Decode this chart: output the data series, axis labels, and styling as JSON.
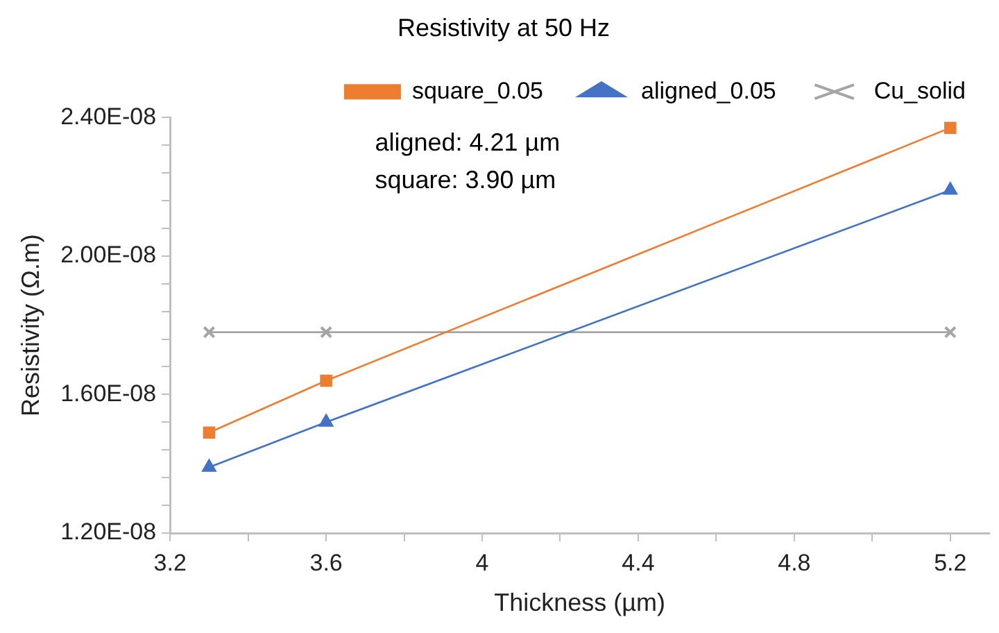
{
  "chart_data": {
    "type": "line",
    "title": "Resistivity at 50 Hz",
    "xlabel": "Thickness (µm)",
    "ylabel": "Resistivity (Ω.m)",
    "x": [
      3.3,
      3.6,
      5.2
    ],
    "series": [
      {
        "name": "square_0.05",
        "color": "#ed7d31",
        "marker": "square",
        "values": [
          1.49e-08,
          1.64e-08,
          2.37e-08
        ]
      },
      {
        "name": "aligned_0.05",
        "color": "#4472c4",
        "marker": "triangle",
        "values": [
          1.39e-08,
          1.52e-08,
          2.19e-08
        ]
      },
      {
        "name": "Cu_solid",
        "color": "#a5a5a5",
        "marker": "cross",
        "values": [
          1.78e-08,
          1.78e-08,
          1.78e-08
        ]
      }
    ],
    "xlim": [
      3.2,
      5.3
    ],
    "xticks": [
      3.2,
      {
        "value": 3.4,
        "label": null
      },
      3.6,
      {
        "value": 3.8,
        "label": null
      },
      4,
      {
        "value": 4.2,
        "label": null
      },
      4.4,
      {
        "value": 4.6,
        "label": null
      },
      4.8,
      {
        "value": 5.0,
        "label": null
      },
      5.2
    ],
    "ylim": [
      1.2e-08,
      2.4e-08
    ],
    "yticks": [
      {
        "value": 1.2e-08,
        "label": "1.20E-08"
      },
      {
        "value": 1.28e-08,
        "label": null
      },
      {
        "value": 1.36e-08,
        "label": null
      },
      {
        "value": 1.44e-08,
        "label": null
      },
      {
        "value": 1.52e-08,
        "label": null
      },
      {
        "value": 1.6e-08,
        "label": "1.60E-08"
      },
      {
        "value": 1.68e-08,
        "label": null
      },
      {
        "value": 1.76e-08,
        "label": null
      },
      {
        "value": 1.84e-08,
        "label": null
      },
      {
        "value": 1.92e-08,
        "label": null
      },
      {
        "value": 2e-08,
        "label": "2.00E-08"
      },
      {
        "value": 2.08e-08,
        "label": null
      },
      {
        "value": 2.16e-08,
        "label": null
      },
      {
        "value": 2.24e-08,
        "label": null
      },
      {
        "value": 2.32e-08,
        "label": null
      },
      {
        "value": 2.4e-08,
        "label": "2.40E-08"
      }
    ],
    "annotations": [
      "aligned: 4.21 µm",
      "square: 3.90 µm"
    ],
    "grid": false,
    "legend": "top"
  }
}
